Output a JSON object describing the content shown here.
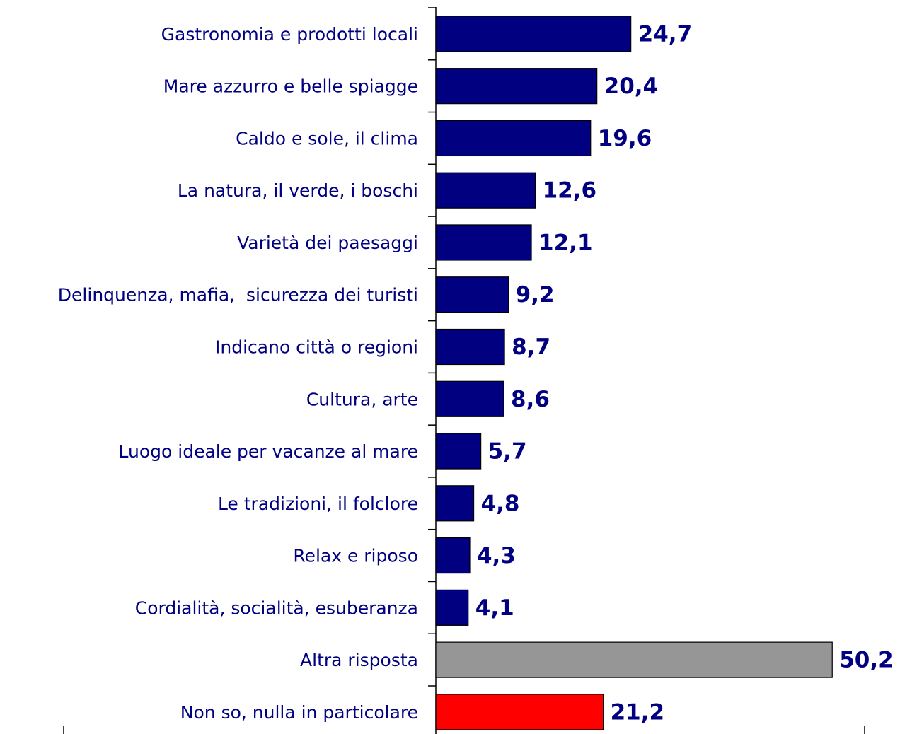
{
  "chart_data": {
    "type": "bar",
    "orientation": "horizontal",
    "categories": [
      "Gastronomia e prodotti locali",
      "Mare azzurro e belle spiagge",
      "Caldo e sole, il clima",
      "La natura, il verde, i boschi",
      "Varietà dei paesaggi",
      "Delinquenza, mafia,  sicurezza dei turisti",
      "Indicano città o regioni",
      "Cultura, arte",
      "Luogo ideale per vacanze al mare",
      "Le tradizioni, il folclore",
      "Relax e riposo",
      "Cordialità, socialità, esuberanza",
      "Altra risposta",
      "Non so, nulla in particolare"
    ],
    "values": [
      24.7,
      20.4,
      19.6,
      12.6,
      12.1,
      9.2,
      8.7,
      8.6,
      5.7,
      4.8,
      4.3,
      4.1,
      50.2,
      21.2
    ],
    "value_labels": [
      "24,7",
      "20,4",
      "19,6",
      "12,6",
      "12,1",
      "9,2",
      "8,7",
      "8,6",
      "5,7",
      "4,8",
      "4,3",
      "4,1",
      "50,2",
      "21,2"
    ],
    "colors": [
      "#000080",
      "#000080",
      "#000080",
      "#000080",
      "#000080",
      "#000080",
      "#000080",
      "#000080",
      "#000080",
      "#000080",
      "#000080",
      "#000080",
      "#969696",
      "#ff0000"
    ],
    "xlim": [
      0,
      54.3
    ]
  }
}
